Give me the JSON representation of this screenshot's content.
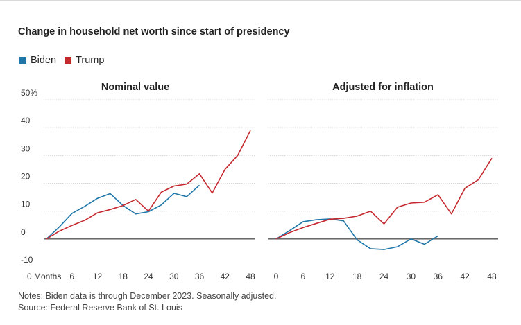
{
  "title": "Change in household net worth since start of presidency",
  "legend": [
    {
      "name": "Biden",
      "color": "#1f77a8"
    },
    {
      "name": "Trump",
      "color": "#c5282f"
    }
  ],
  "footer": {
    "notes": "Notes: Biden data is through December 2023. Seasonally adjusted.",
    "source": "Source: Federal Reserve Bank of St. Louis"
  },
  "chart_data": [
    {
      "type": "line",
      "title": "Nominal value",
      "x_tick_labels": [
        "0 Months",
        "6",
        "12",
        "18",
        "24",
        "30",
        "36",
        "42",
        "48"
      ],
      "y_tick_labels": [
        "50%",
        "40",
        "30",
        "20",
        "10",
        "0",
        "-10"
      ],
      "ylim": [
        -10,
        50
      ],
      "xlim": [
        0,
        48
      ],
      "grid": true,
      "series": [
        {
          "name": "Biden",
          "color": "#1f77a8",
          "x": [
            0,
            3,
            6,
            9,
            12,
            15,
            18,
            21,
            24,
            27,
            30,
            33,
            36
          ],
          "y": [
            0,
            4.3,
            9.2,
            11.7,
            14.6,
            16.3,
            12.0,
            9.0,
            9.8,
            12.2,
            16.4,
            15.2,
            19.3
          ]
        },
        {
          "name": "Trump",
          "color": "#c5282f",
          "x": [
            0,
            3,
            6,
            9,
            12,
            15,
            18,
            21,
            24,
            27,
            30,
            33,
            36,
            39,
            42,
            45,
            48
          ],
          "y": [
            0,
            2.8,
            4.9,
            6.7,
            9.4,
            10.6,
            12.0,
            14.2,
            10.0,
            16.8,
            19.0,
            19.7,
            23.4,
            16.5,
            25.0,
            30.0,
            39.0
          ]
        }
      ]
    },
    {
      "type": "line",
      "title": "Adjusted for inflation",
      "x_tick_labels": [
        "0",
        "6",
        "12",
        "18",
        "24",
        "30",
        "36",
        "42",
        "48"
      ],
      "ylim": [
        -10,
        50
      ],
      "xlim": [
        0,
        48
      ],
      "grid": true,
      "series": [
        {
          "name": "Biden",
          "color": "#1f77a8",
          "x": [
            0,
            3,
            6,
            9,
            12,
            15,
            18,
            21,
            24,
            27,
            30,
            33,
            36
          ],
          "y": [
            0,
            3.0,
            6.2,
            6.9,
            7.2,
            6.5,
            -0.3,
            -3.5,
            -3.8,
            -2.8,
            0.0,
            -1.9,
            1.1
          ]
        },
        {
          "name": "Trump",
          "color": "#c5282f",
          "x": [
            0,
            3,
            6,
            9,
            12,
            15,
            18,
            21,
            24,
            27,
            30,
            33,
            36,
            39,
            42,
            45,
            48
          ],
          "y": [
            0,
            2.3,
            4.1,
            5.6,
            7.1,
            7.4,
            8.2,
            10.0,
            5.4,
            11.4,
            12.9,
            13.2,
            15.9,
            9.0,
            18.2,
            21.3,
            29.0
          ]
        }
      ]
    }
  ]
}
